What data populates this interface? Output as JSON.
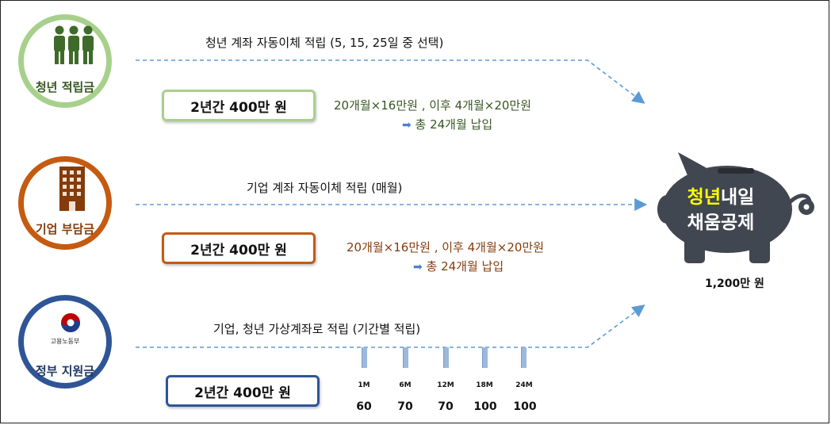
{
  "colors": {
    "green": "#a8d08d",
    "orange": "#c55a11",
    "navy": "#2f5597",
    "dashed_line": "#5b9bd5",
    "highlight_yellow": "#ffff00"
  },
  "rows": [
    {
      "circle_label": "청년 적립금",
      "icon": "people-icon",
      "title": "청년 계좌 자동이체 적립 (5, 15, 25일 중 선택)",
      "box_label": "2년간 400만 원",
      "desc_line1": "20개월×16만원 , 이후 4개월×20만원",
      "desc_line2": "총 24개월 납입"
    },
    {
      "circle_label": "기업 부담금",
      "icon": "building-icon",
      "title": "기업 계좌 자동이체 적립 (매월)",
      "box_label": "2년간 400만 원",
      "desc_line1": "20개월×16만원 , 이후 4개월×20만원",
      "desc_line2": "총 24개월 납입"
    },
    {
      "circle_label": "정부 지원금",
      "icon": "government-emblem-icon",
      "emblem_text": "고용노동부",
      "title": "기업, 청년 가상계좌로 적립 (기간별 적립)",
      "box_label": "2년간 400만 원",
      "timeline": [
        {
          "label": "1M",
          "value": "60"
        },
        {
          "label": "6M",
          "value": "70"
        },
        {
          "label": "12M",
          "value": "70"
        },
        {
          "label": "18M",
          "value": "100"
        },
        {
          "label": "24M",
          "value": "100"
        }
      ]
    }
  ],
  "piggy": {
    "icon": "piggy-bank-icon",
    "highlight": "청년",
    "line1_rest": "내일",
    "line2": "채움공제",
    "total": "1,200만 원"
  }
}
